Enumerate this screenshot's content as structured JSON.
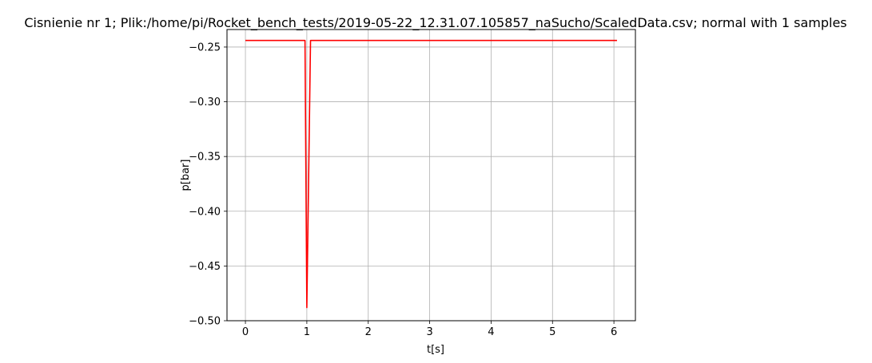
{
  "chart_data": {
    "type": "line",
    "title": "Cisnienie nr 1; Plik:/home/pi/Rocket_bench_tests/2019-05-22_12.31.07.105857_naSucho/ScaledData.csv; normal with 1 samples",
    "xlabel": "t[s]",
    "ylabel": "p[bar]",
    "xlim": [
      -0.3,
      6.35
    ],
    "ylim": [
      -0.5,
      -0.234
    ],
    "xticks": [
      0,
      1,
      2,
      3,
      4,
      5,
      6
    ],
    "xtick_labels": [
      "0",
      "1",
      "2",
      "3",
      "4",
      "5",
      "6"
    ],
    "yticks": [
      -0.25,
      -0.3,
      -0.35,
      -0.4,
      -0.45,
      -0.5
    ],
    "ytick_labels": [
      "−0.25",
      "−0.30",
      "−0.35",
      "−0.40",
      "−0.45",
      "−0.50"
    ],
    "grid": true,
    "series": [
      {
        "color": "#ff0000",
        "x": [
          0,
          0.97,
          1.0,
          1.06,
          6.05
        ],
        "y": [
          -0.244,
          -0.244,
          -0.488,
          -0.244,
          -0.244
        ]
      }
    ]
  }
}
